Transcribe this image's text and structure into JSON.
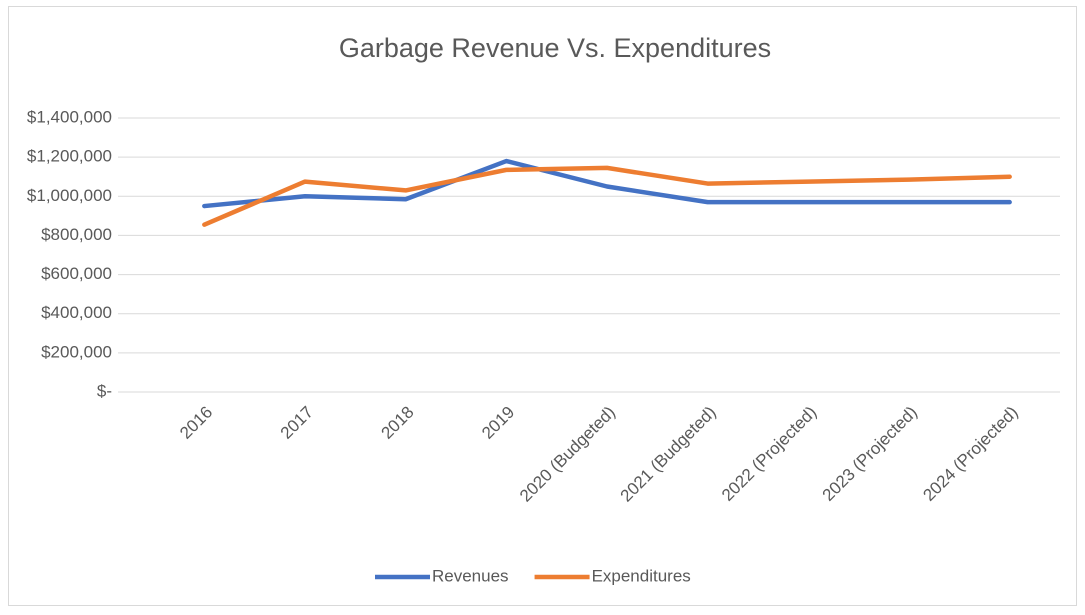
{
  "chart_data": {
    "type": "line",
    "title": "Garbage Revenue Vs. Expenditures",
    "categories": [
      "2016",
      "2017",
      "2018",
      "2019",
      "2020 (Budgeted)",
      "2021 (Budgeted)",
      "2022 (Projected)",
      "2023 (Projected)",
      "2024 (Projected)"
    ],
    "series": [
      {
        "name": "Revenues",
        "color": "#4472c4",
        "values": [
          950000,
          1000000,
          985000,
          1180000,
          1050000,
          970000,
          970000,
          970000,
          970000
        ]
      },
      {
        "name": "Expenditures",
        "color": "#ed7d31",
        "values": [
          855000,
          1075000,
          1030000,
          1135000,
          1145000,
          1065000,
          1075000,
          1085000,
          1100000
        ]
      }
    ],
    "ylim": [
      0,
      1400000
    ],
    "yticks": [
      {
        "value": 0,
        "label": "$-"
      },
      {
        "value": 200000,
        "label": "$200,000"
      },
      {
        "value": 400000,
        "label": "$400,000"
      },
      {
        "value": 600000,
        "label": "$600,000"
      },
      {
        "value": 800000,
        "label": "$800,000"
      },
      {
        "value": 1000000,
        "label": "$1,000,000"
      },
      {
        "value": 1200000,
        "label": "$1,200,000"
      },
      {
        "value": 1400000,
        "label": "$1,400,000"
      }
    ],
    "grid": true,
    "legend": "bottom"
  }
}
